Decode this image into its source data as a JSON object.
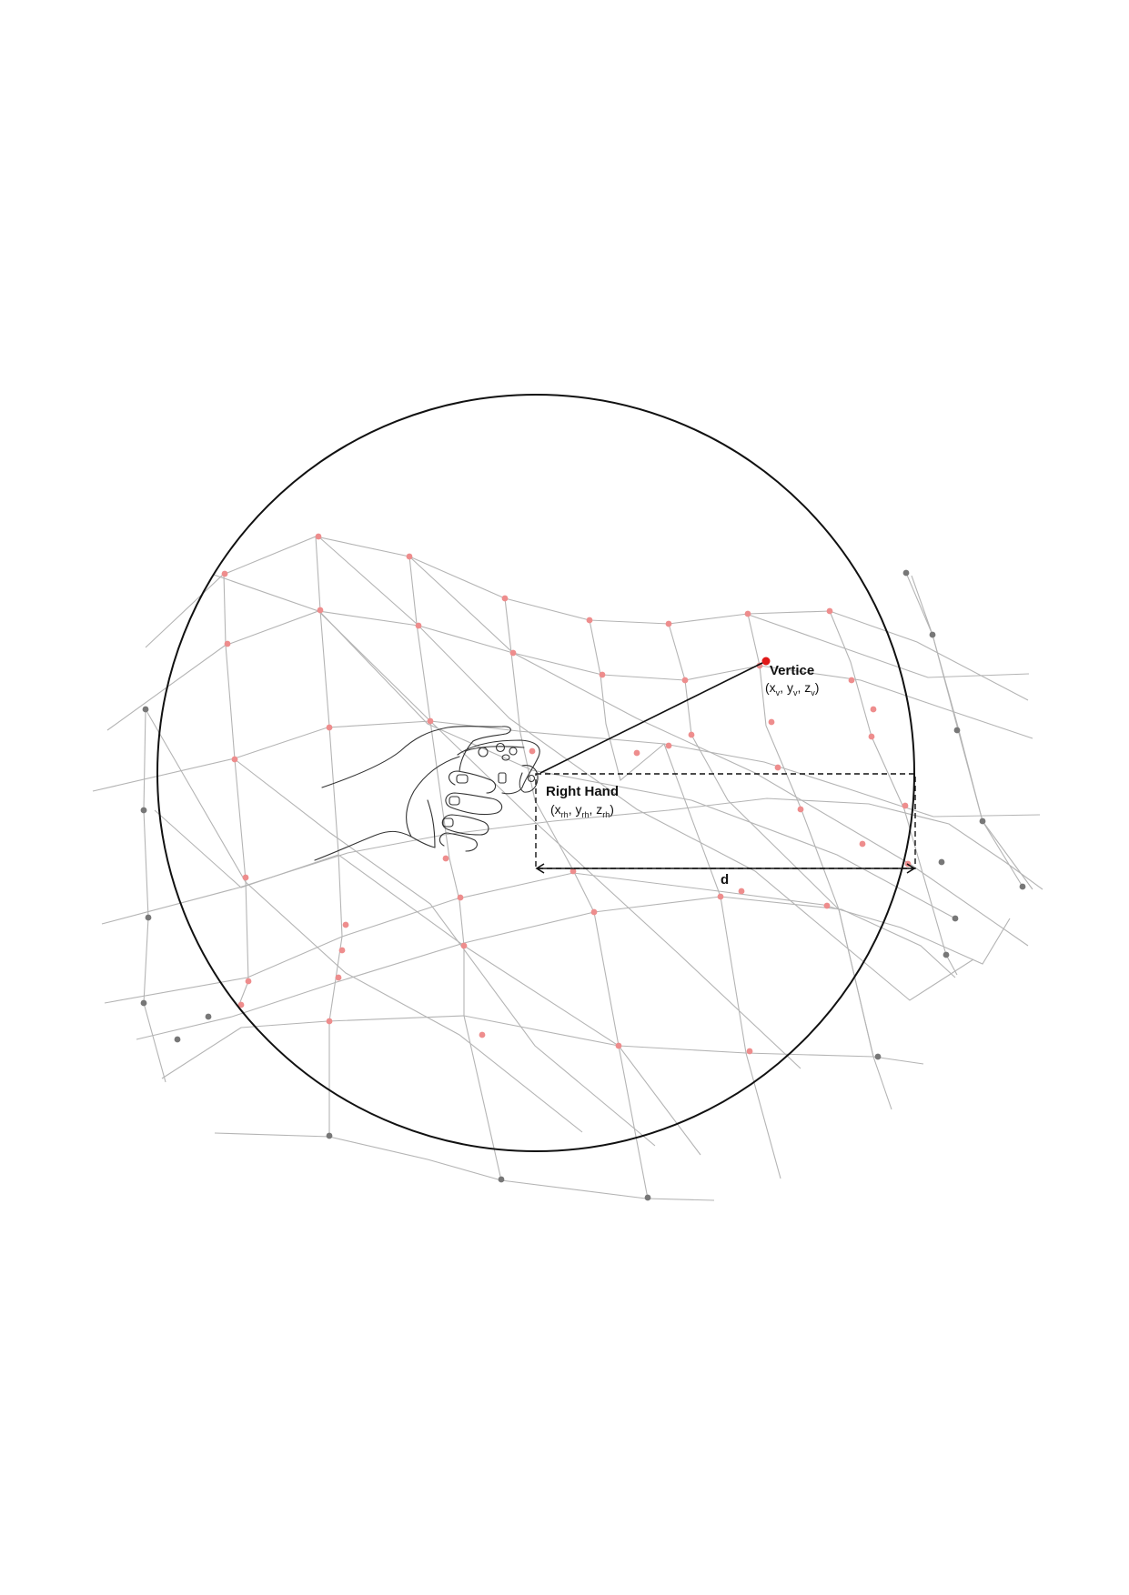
{
  "diagram": {
    "colors": {
      "mesh_line": "#b4b4b4",
      "inside_node": "#ee8d8d",
      "outside_node": "#777777",
      "highlight_vertex": "#e01818",
      "outline": "#111111"
    },
    "vertex_label": {
      "title": "Vertice",
      "open": "(x",
      "sub1": "v",
      "sep1": ", y",
      "sub2": "v",
      "sep2": ", z",
      "sub3": "v",
      "close": ")"
    },
    "hand_label": {
      "title": "Right Hand",
      "open": "(x",
      "sub1": "rh",
      "sep1": ", y",
      "sub2": "rh",
      "sep2": ", z",
      "sub3": "rh",
      "close": ")"
    },
    "distance_label": "d",
    "icons": {
      "hand": "vr-controller-hand-icon"
    }
  }
}
